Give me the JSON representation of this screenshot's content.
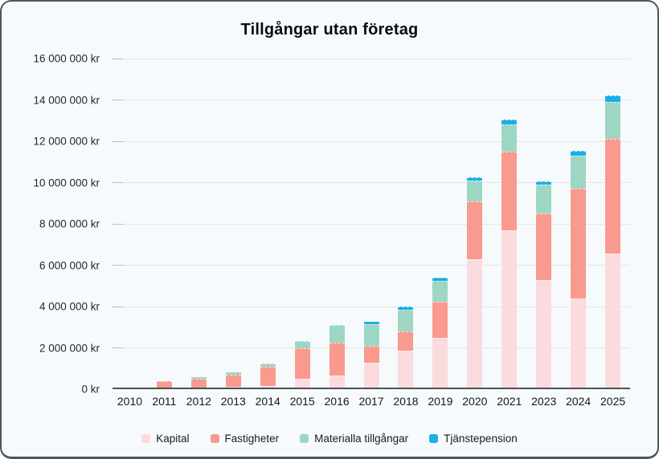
{
  "card": {
    "background": "#f7fafd",
    "border_color": "#47595f"
  },
  "chart": {
    "title": "Tillgångar utan företag"
  },
  "chart_data": {
    "type": "bar",
    "stacked": true,
    "title": "Tillgångar utan företag",
    "xlabel": "",
    "ylabel": "",
    "unit": "kr",
    "grid": true,
    "legend_position": "bottom",
    "ylim": [
      0,
      16000000
    ],
    "categories": [
      "2010",
      "2011",
      "2012",
      "2013",
      "2014",
      "2015",
      "2016",
      "2017",
      "2018",
      "2019",
      "2020",
      "2021",
      "2023",
      "2024",
      "2025"
    ],
    "series": [
      {
        "name": "Kapital",
        "color": "#fbdbde",
        "values": [
          30000,
          0,
          0,
          100000,
          150000,
          500000,
          650000,
          1300000,
          1850000,
          2500000,
          6300000,
          7700000,
          5300000,
          4400000,
          6550000
        ]
      },
      {
        "name": "Fastigheter",
        "color": "#f89a8d",
        "values": [
          0,
          400000,
          500000,
          600000,
          950000,
          1500000,
          1600000,
          800000,
          950000,
          1750000,
          2800000,
          3800000,
          3200000,
          5300000,
          5550000
        ]
      },
      {
        "name": "Materialla tillgångar",
        "color": "#9dd7c4",
        "values": [
          0,
          0,
          100000,
          100000,
          150000,
          350000,
          850000,
          1050000,
          1050000,
          1000000,
          1000000,
          1300000,
          1400000,
          1600000,
          1800000
        ]
      },
      {
        "name": "Tjänstepension",
        "color": "#18b0e8",
        "values": [
          0,
          0,
          0,
          0,
          0,
          0,
          0,
          100000,
          150000,
          150000,
          150000,
          250000,
          150000,
          250000,
          300000
        ]
      }
    ],
    "yticks": [
      {
        "label": "0 kr",
        "value": 0
      },
      {
        "label": "2 000 000 kr",
        "value": 2000000
      },
      {
        "label": "4 000 000 kr",
        "value": 4000000
      },
      {
        "label": "6 000 000 kr",
        "value": 6000000
      },
      {
        "label": "8 000 000 kr",
        "value": 8000000
      },
      {
        "label": "10 000 000 kr",
        "value": 10000000
      },
      {
        "label": "12 000 000 kr",
        "value": 12000000
      },
      {
        "label": "14 000 000 kr",
        "value": 14000000
      },
      {
        "label": "16 000 000 kr",
        "value": 16000000
      }
    ]
  }
}
